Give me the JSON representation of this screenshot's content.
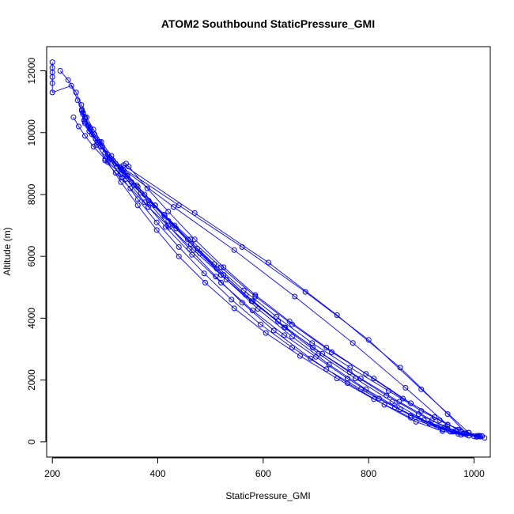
{
  "chart_data": {
    "type": "line",
    "title": "ATOM2 Southbound StaticPressure_GMI",
    "xlabel": "StaticPressure_GMI",
    "ylabel": "Altitude (m)",
    "xlim": [
      189.2,
      1030.8
    ],
    "ylim": [
      -491.2,
      12781.2
    ],
    "x_ticks": [
      200,
      400,
      600,
      800,
      1000
    ],
    "y_ticks": [
      0,
      2000,
      4000,
      6000,
      8000,
      10000,
      12000
    ],
    "x_tick_labels": [
      "200",
      "400",
      "600",
      "800",
      "1000"
    ],
    "y_tick_labels": [
      "0",
      "2000",
      "4000",
      "6000",
      "8000",
      "10000",
      "12000"
    ],
    "grid": false,
    "marker": "open-circle",
    "series_color": "#0000ff",
    "series": [
      {
        "points": [
          [
            200,
            12280
          ],
          [
            200,
            12100
          ],
          [
            200,
            11950
          ],
          [
            200,
            11800
          ],
          [
            200,
            11600
          ],
          [
            200,
            11300
          ],
          [
            236,
            11520
          ],
          [
            248,
            11050
          ],
          [
            258,
            10650
          ],
          [
            268,
            10250
          ],
          [
            280,
            9950
          ],
          [
            295,
            9550
          ],
          [
            310,
            9180
          ],
          [
            330,
            8800
          ],
          [
            355,
            8300
          ],
          [
            385,
            7700
          ],
          [
            420,
            7000
          ],
          [
            460,
            6250
          ],
          [
            510,
            5350
          ],
          [
            560,
            4500
          ],
          [
            620,
            3600
          ],
          [
            690,
            2700
          ],
          [
            760,
            1900
          ],
          [
            830,
            1200
          ],
          [
            890,
            650
          ],
          [
            940,
            350
          ],
          [
            975,
            230
          ],
          [
            1010,
            200
          ]
        ]
      },
      {
        "points": [
          [
            1020,
            130
          ],
          [
            1000,
            180
          ],
          [
            970,
            260
          ],
          [
            930,
            480
          ],
          [
            880,
            850
          ],
          [
            820,
            1400
          ],
          [
            760,
            2050
          ],
          [
            700,
            2750
          ],
          [
            640,
            3450
          ],
          [
            580,
            4250
          ],
          [
            520,
            5150
          ],
          [
            465,
            6050
          ],
          [
            415,
            6950
          ],
          [
            375,
            7750
          ],
          [
            340,
            8500
          ],
          [
            312,
            9150
          ],
          [
            290,
            9700
          ],
          [
            272,
            10150
          ],
          [
            262,
            10500
          ],
          [
            256,
            10750
          ]
        ]
      },
      {
        "points": [
          [
            256,
            10700
          ],
          [
            260,
            10400
          ],
          [
            270,
            10050
          ],
          [
            285,
            9700
          ],
          [
            305,
            9300
          ],
          [
            330,
            8850
          ],
          [
            360,
            8300
          ],
          [
            395,
            7650
          ],
          [
            435,
            6900
          ],
          [
            480,
            6100
          ],
          [
            530,
            5250
          ],
          [
            590,
            4300
          ],
          [
            655,
            3400
          ],
          [
            725,
            2500
          ],
          [
            795,
            1700
          ],
          [
            860,
            1050
          ],
          [
            915,
            600
          ],
          [
            960,
            330
          ],
          [
            1005,
            160
          ]
        ]
      },
      {
        "points": [
          [
            215,
            12000
          ],
          [
            230,
            11700
          ],
          [
            245,
            11300
          ],
          [
            255,
            10900
          ],
          [
            265,
            10500
          ],
          [
            278,
            10100
          ],
          [
            293,
            9700
          ],
          [
            312,
            9250
          ],
          [
            335,
            8800
          ],
          [
            362,
            8250
          ],
          [
            395,
            7650
          ],
          [
            432,
            7000
          ],
          [
            475,
            6250
          ],
          [
            525,
            5400
          ],
          [
            580,
            4550
          ],
          [
            640,
            3700
          ],
          [
            705,
            2850
          ],
          [
            775,
            2050
          ],
          [
            845,
            1300
          ],
          [
            905,
            700
          ],
          [
            955,
            330
          ],
          [
            990,
            200
          ]
        ]
      },
      {
        "points": [
          [
            1012,
            170
          ],
          [
            985,
            240
          ],
          [
            950,
            420
          ],
          [
            905,
            700
          ],
          [
            850,
            1120
          ],
          [
            785,
            1700
          ],
          [
            720,
            2350
          ],
          [
            655,
            3050
          ],
          [
            595,
            3800
          ],
          [
            540,
            4600
          ],
          [
            488,
            5450
          ],
          [
            440,
            6300
          ],
          [
            398,
            7100
          ],
          [
            362,
            7850
          ],
          [
            332,
            8550
          ],
          [
            308,
            9150
          ],
          [
            288,
            9650
          ],
          [
            272,
            10100
          ],
          [
            262,
            10450
          ],
          [
            258,
            10650
          ]
        ]
      },
      {
        "points": [
          [
            258,
            10600
          ],
          [
            268,
            10200
          ],
          [
            282,
            9800
          ],
          [
            300,
            9350
          ],
          [
            323,
            8900
          ],
          [
            350,
            8400
          ],
          [
            383,
            7800
          ],
          [
            420,
            7150
          ],
          [
            463,
            6400
          ],
          [
            512,
            5600
          ],
          [
            567,
            4750
          ],
          [
            628,
            3900
          ],
          [
            694,
            3050
          ],
          [
            764,
            2250
          ],
          [
            834,
            1500
          ],
          [
            895,
            900
          ],
          [
            945,
            480
          ],
          [
            980,
            260
          ],
          [
            1008,
            180
          ]
        ]
      },
      {
        "points": [
          [
            1010,
            200
          ],
          [
            980,
            270
          ],
          [
            940,
            400
          ],
          [
            880,
            780
          ],
          [
            810,
            1380
          ],
          [
            740,
            2050
          ],
          [
            670,
            2780
          ],
          [
            605,
            3520
          ],
          [
            545,
            4320
          ],
          [
            490,
            5150
          ],
          [
            440,
            6000
          ],
          [
            398,
            6850
          ],
          [
            362,
            7650
          ],
          [
            330,
            8400
          ],
          [
            305,
            9050
          ],
          [
            284,
            9600
          ],
          [
            270,
            10050
          ],
          [
            262,
            10350
          ]
        ]
      },
      {
        "points": [
          [
            262,
            10300
          ],
          [
            275,
            9950
          ],
          [
            292,
            9550
          ],
          [
            315,
            9100
          ],
          [
            342,
            8600
          ],
          [
            375,
            8000
          ],
          [
            413,
            7300
          ],
          [
            457,
            6550
          ],
          [
            507,
            5750
          ],
          [
            563,
            4900
          ],
          [
            625,
            4050
          ],
          [
            693,
            3200
          ],
          [
            765,
            2400
          ],
          [
            838,
            1650
          ],
          [
            900,
            1000
          ],
          [
            950,
            560
          ],
          [
            990,
            300
          ],
          [
            1015,
            190
          ]
        ]
      },
      {
        "points": [
          [
            240,
            10500
          ],
          [
            250,
            10200
          ],
          [
            262,
            9900
          ],
          [
            278,
            9550
          ],
          [
            300,
            9150
          ],
          [
            330,
            8650
          ],
          [
            368,
            8050
          ],
          [
            412,
            7350
          ],
          [
            462,
            6550
          ],
          [
            520,
            5650
          ],
          [
            585,
            4700
          ],
          [
            655,
            3800
          ],
          [
            730,
            2900
          ],
          [
            810,
            2050
          ],
          [
            880,
            1250
          ],
          [
            935,
            700
          ],
          [
            975,
            350
          ],
          [
            1005,
            200
          ]
        ]
      },
      {
        "points": [
          [
            330,
            8900
          ],
          [
            440,
            7650
          ],
          [
            560,
            6300
          ],
          [
            680,
            4850
          ],
          [
            800,
            3300
          ],
          [
            900,
            1700
          ],
          [
            990,
            300
          ]
        ]
      },
      {
        "points": [
          [
            335,
            8950
          ],
          [
            470,
            7400
          ],
          [
            610,
            5800
          ],
          [
            740,
            4100
          ],
          [
            860,
            2400
          ],
          [
            950,
            900
          ],
          [
            985,
            280
          ]
        ]
      },
      {
        "points": [
          [
            320,
            9000
          ],
          [
            430,
            7600
          ],
          [
            545,
            6200
          ],
          [
            660,
            4700
          ],
          [
            770,
            3200
          ],
          [
            870,
            1750
          ],
          [
            950,
            550
          ]
        ]
      },
      {
        "points": [
          [
            340,
            9000
          ],
          [
            345,
            8900
          ],
          [
            380,
            8200
          ],
          [
            420,
            7450
          ],
          [
            470,
            6550
          ],
          [
            525,
            5650
          ],
          [
            585,
            4750
          ],
          [
            650,
            3900
          ],
          [
            720,
            3050
          ],
          [
            795,
            2200
          ],
          [
            865,
            1400
          ],
          [
            925,
            800
          ],
          [
            970,
            400
          ]
        ]
      },
      {
        "points": [
          [
            300,
            9100
          ],
          [
            320,
            8700
          ],
          [
            348,
            8200
          ],
          [
            382,
            7600
          ],
          [
            422,
            6950
          ],
          [
            468,
            6200
          ],
          [
            520,
            5400
          ],
          [
            578,
            4550
          ],
          [
            642,
            3700
          ],
          [
            712,
            2850
          ],
          [
            785,
            2050
          ],
          [
            858,
            1300
          ],
          [
            920,
            700
          ],
          [
            965,
            350
          ]
        ]
      }
    ]
  }
}
